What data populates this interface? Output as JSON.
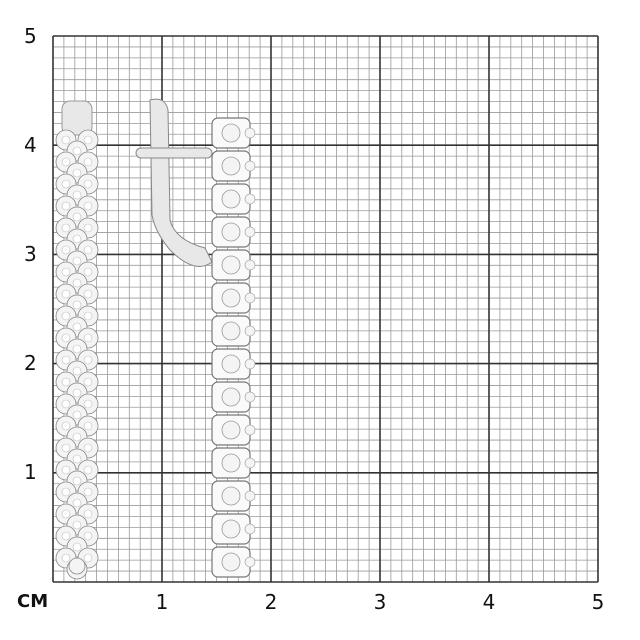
{
  "scale": {
    "unit_label": "CM",
    "x_labels": [
      "1",
      "2",
      "3",
      "4",
      "5"
    ],
    "y_labels": [
      "5",
      "4",
      "3",
      "2",
      "1"
    ],
    "range_cm": [
      0,
      5
    ],
    "minor_divisions_per_cm": 10,
    "grid_major_color": "#333333",
    "grid_minor_color": "#9a9a9a"
  },
  "product": {
    "type": "earrings",
    "metal_color": "#e8e8e8",
    "stone_color": "#f4f4f4"
  }
}
